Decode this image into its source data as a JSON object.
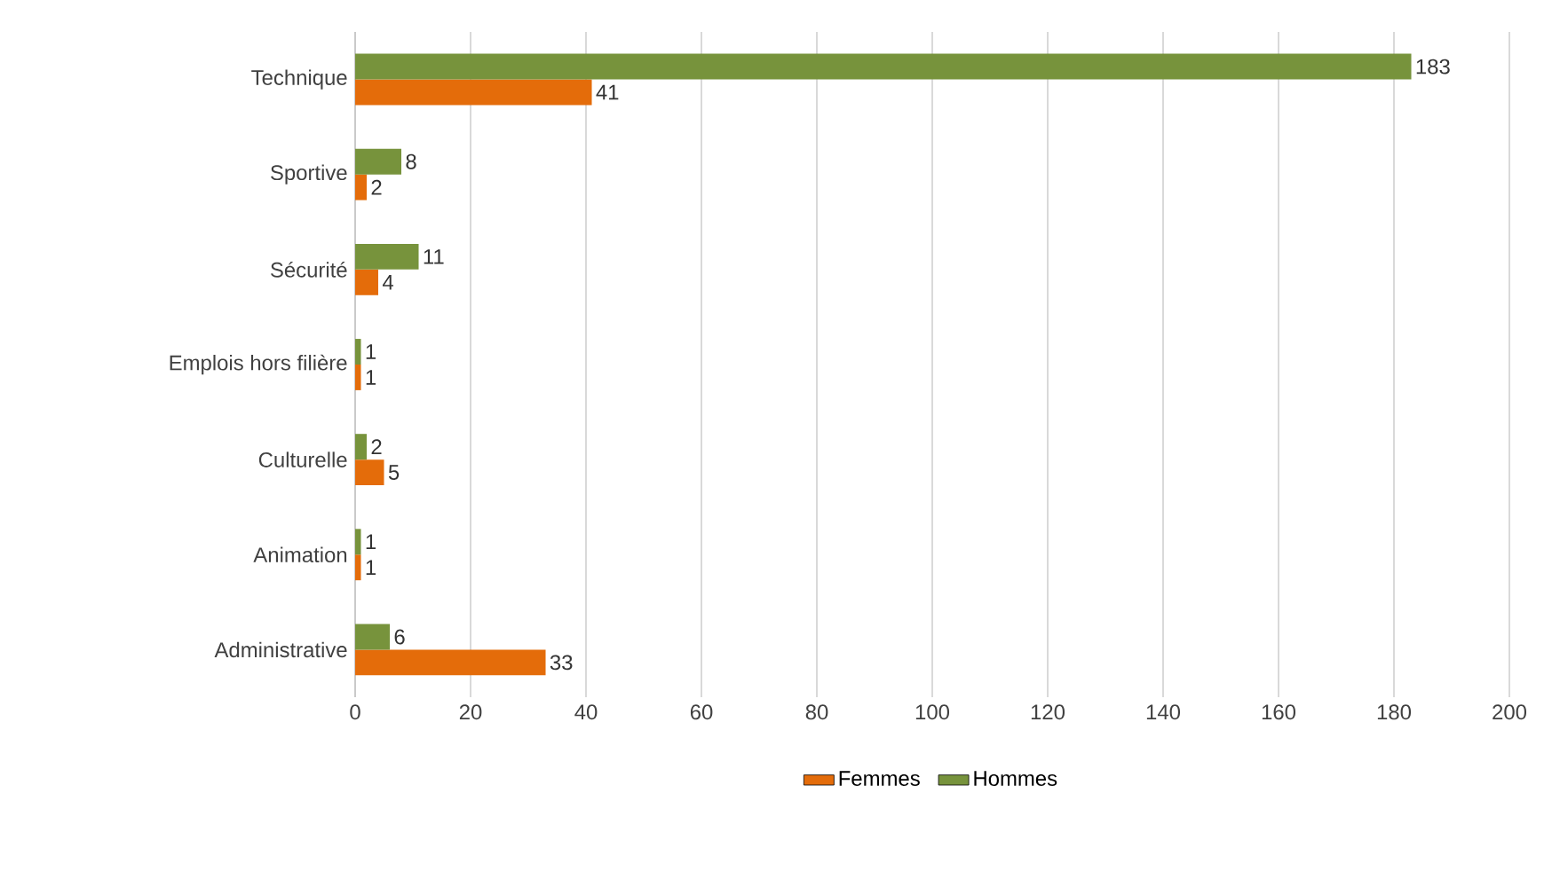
{
  "chart_data": {
    "type": "bar",
    "orientation": "horizontal",
    "categories": [
      "Technique",
      "Sportive",
      "Sécurité",
      "Emplois hors filière",
      "Culturelle",
      "Animation",
      "Administrative"
    ],
    "series": [
      {
        "name": "Femmes",
        "color": "#e46c0a",
        "values": [
          41,
          2,
          4,
          1,
          5,
          1,
          33
        ]
      },
      {
        "name": "Hommes",
        "color": "#77933c",
        "values": [
          183,
          8,
          11,
          1,
          2,
          1,
          6
        ]
      }
    ],
    "xlim": [
      0,
      200
    ],
    "xticks": [
      0,
      20,
      40,
      60,
      80,
      100,
      120,
      140,
      160,
      180,
      200
    ],
    "grid": "x",
    "legend": "bottom",
    "data_labels": true
  }
}
